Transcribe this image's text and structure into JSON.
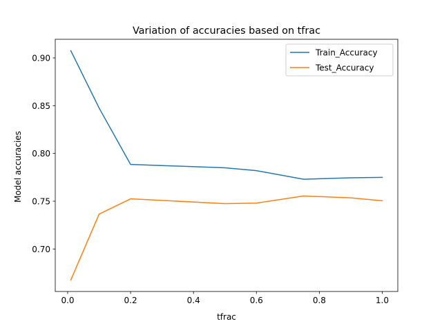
{
  "chart_data": {
    "type": "line",
    "title": "Variation of accuracies based on tfrac",
    "xlabel": "tfrac",
    "ylabel": "Model accuracies",
    "xlim": [
      -0.0395,
      1.0495
    ],
    "ylim": [
      0.6555,
      0.9195
    ],
    "xticks": [
      0.0,
      0.2,
      0.4,
      0.6,
      0.8,
      1.0
    ],
    "xtick_labels": [
      "0.0",
      "0.2",
      "0.4",
      "0.6",
      "0.8",
      "1.0"
    ],
    "yticks": [
      0.7,
      0.75,
      0.8,
      0.85,
      0.9
    ],
    "ytick_labels": [
      "0.70",
      "0.75",
      "0.80",
      "0.85",
      "0.90"
    ],
    "grid": false,
    "legend_position": "upper right",
    "x": [
      0.01,
      0.1,
      0.2,
      0.5,
      0.6,
      0.75,
      0.9,
      1.0
    ],
    "series": [
      {
        "name": "Train_Accuracy",
        "color": "#1f77b4",
        "values": [
          0.9075,
          0.8475,
          0.7885,
          0.785,
          0.782,
          0.773,
          0.7745,
          0.775
        ]
      },
      {
        "name": "Test_Accuracy",
        "color": "#ff7f0e",
        "values": [
          0.6675,
          0.7365,
          0.7525,
          0.7475,
          0.748,
          0.7555,
          0.7535,
          0.7505
        ]
      }
    ]
  }
}
